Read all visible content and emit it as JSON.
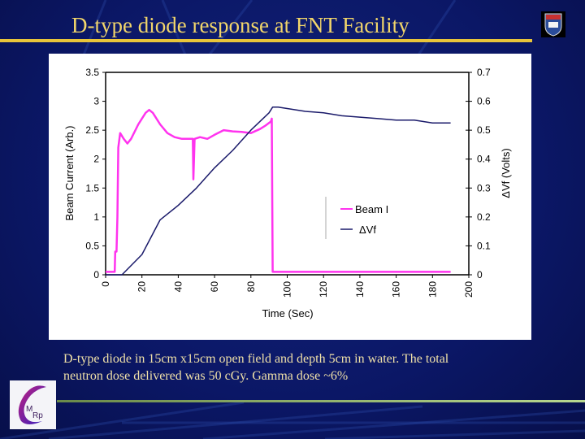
{
  "slide": {
    "title": "D-type diode response at FNT Facility",
    "caption_line1": "D-type diode in 15cm x15cm open  field and depth 5cm in water. The total",
    "caption_line2": "neutron dose delivered was 50 cGy. Gamma dose ~6%",
    "logo_text": "CMRP",
    "crest": "university-crest",
    "colors": {
      "background": "#0b1766",
      "title": "#f2d66a",
      "caption": "#efe0a8"
    }
  },
  "chart_data": {
    "type": "line",
    "title": "",
    "xlabel": "Time (Sec)",
    "ylabel": "Beam Current (Arb.)",
    "y2label": "ΔVf (Volts)",
    "xlim": [
      0,
      200
    ],
    "ylim": [
      0,
      3.5
    ],
    "y2lim": [
      0,
      0.7
    ],
    "xticks": [
      "0",
      "20",
      "40",
      "60",
      "80",
      "100",
      "120",
      "140",
      "160",
      "180",
      "200"
    ],
    "yticks": [
      "0",
      "0.5",
      "1",
      "1.5",
      "2",
      "2.5",
      "3",
      "3.5"
    ],
    "y2ticks": [
      "0",
      "0.1",
      "0.2",
      "0.3",
      "0.4",
      "0.5",
      "0.6",
      "0.7"
    ],
    "grid": false,
    "legend_placement": "center-right",
    "series": [
      {
        "name": "Beam I",
        "axis": "left",
        "color": "#ff33ee",
        "x": [
          0,
          5,
          5.3,
          6,
          6.5,
          7,
          8,
          10,
          12,
          14,
          18,
          22,
          24,
          26,
          30,
          34,
          38,
          42,
          46,
          48,
          48.3,
          49,
          52,
          56,
          60,
          65,
          70,
          75,
          80,
          85,
          88,
          91,
          91.5,
          92,
          100,
          120,
          140,
          160,
          180,
          190
        ],
        "y": [
          0.05,
          0.05,
          0.4,
          0.4,
          1.0,
          2.2,
          2.45,
          2.35,
          2.27,
          2.35,
          2.6,
          2.8,
          2.85,
          2.8,
          2.6,
          2.45,
          2.38,
          2.35,
          2.35,
          2.35,
          1.65,
          2.35,
          2.38,
          2.35,
          2.42,
          2.5,
          2.48,
          2.47,
          2.45,
          2.52,
          2.58,
          2.65,
          2.7,
          0.05,
          0.05,
          0.05,
          0.05,
          0.05,
          0.05,
          0.05
        ]
      },
      {
        "name": "ΔVf",
        "axis": "right",
        "color": "#1a1a6a",
        "x": [
          0,
          9,
          20,
          30,
          40,
          50,
          60,
          70,
          80,
          90,
          92,
          95,
          100,
          105,
          110,
          120,
          130,
          140,
          150,
          160,
          170,
          175,
          180,
          185,
          190
        ],
        "y": [
          0,
          0,
          0.07,
          0.19,
          0.24,
          0.3,
          0.37,
          0.43,
          0.5,
          0.56,
          0.58,
          0.58,
          0.575,
          0.57,
          0.565,
          0.56,
          0.55,
          0.545,
          0.54,
          0.535,
          0.535,
          0.53,
          0.525,
          0.525,
          0.525
        ]
      }
    ]
  }
}
